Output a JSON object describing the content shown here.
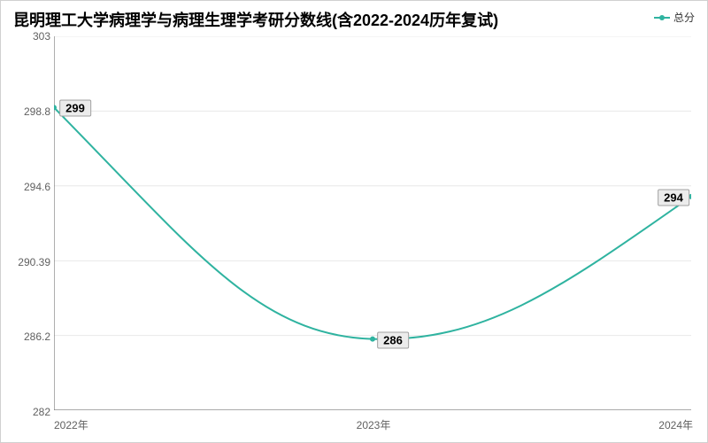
{
  "chart": {
    "type": "line",
    "title": "昆明理工大学病理学与病理生理学考研分数线(含2022-2024历年复试)",
    "title_fontsize": 18,
    "title_color": "#000000",
    "background_color": "#ffffff",
    "border_color": "#d0d0d0",
    "series": {
      "name": "总分",
      "color": "#2fb3a0",
      "line_width": 2,
      "marker": "circle",
      "marker_size": 3,
      "data": [
        {
          "x": "2022年",
          "y": 299,
          "label": "299"
        },
        {
          "x": "2023年",
          "y": 286,
          "label": "286"
        },
        {
          "x": "2024年",
          "y": 294,
          "label": "294"
        }
      ]
    },
    "x_axis": {
      "categories": [
        "2022年",
        "2023年",
        "2024年"
      ],
      "label_fontsize": 12,
      "label_color": "#606060",
      "axis_line_color": "#777777"
    },
    "y_axis": {
      "min": 282,
      "max": 303,
      "ticks": [
        282,
        286.2,
        290.39,
        294.6,
        298.8,
        303
      ],
      "tick_labels": [
        "282",
        "286.2",
        "290.39",
        "294.6",
        "298.8",
        "303"
      ],
      "label_fontsize": 12,
      "label_color": "#606060",
      "grid_color": "#e8e8e8",
      "axis_line_color": "#777777"
    },
    "legend": {
      "position": "top-right",
      "fontsize": 12,
      "text_color": "#333333"
    },
    "data_label_style": {
      "bg": "#ececec",
      "border": "#a0a0a0",
      "color": "#000000",
      "fontsize": 13
    }
  }
}
